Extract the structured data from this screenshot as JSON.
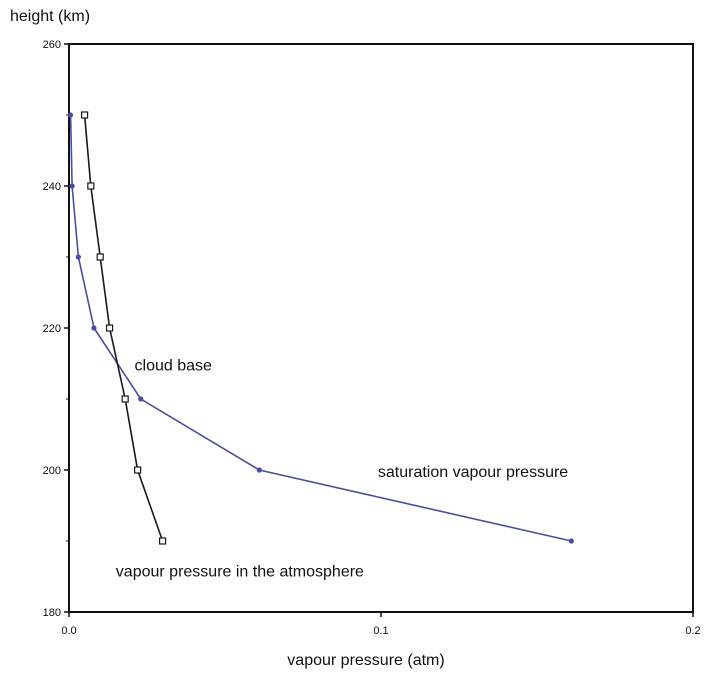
{
  "chart_data": {
    "type": "line",
    "ylabel": "height (km)",
    "xlabel": "vapour pressure (atm)",
    "xlim": [
      0,
      0.2
    ],
    "ylim": [
      180,
      260
    ],
    "x_ticks": [
      "0.0",
      "0.1",
      "0.2"
    ],
    "x_tick_values": [
      0,
      0.1,
      0.2
    ],
    "y_ticks": [
      "180",
      "200",
      "220",
      "240",
      "260"
    ],
    "y_tick_values": [
      180,
      200,
      220,
      240,
      260
    ],
    "y_minor_ticks": [
      190,
      210,
      230,
      250
    ],
    "grid": false,
    "series": [
      {
        "name": "saturation vapour pressure",
        "color": "#4a4ea0",
        "marker": "dot",
        "points": [
          {
            "x": 0.161,
            "y": 190
          },
          {
            "x": 0.061,
            "y": 200
          },
          {
            "x": 0.023,
            "y": 210
          },
          {
            "x": 0.008,
            "y": 220
          },
          {
            "x": 0.003,
            "y": 230
          },
          {
            "x": 0.001,
            "y": 240
          },
          {
            "x": 0.0005,
            "y": 250
          }
        ]
      },
      {
        "name": "vapour pressure in the atmosphere",
        "color": "#1a1a1a",
        "marker": "square",
        "points": [
          {
            "x": 0.03,
            "y": 190
          },
          {
            "x": 0.022,
            "y": 200
          },
          {
            "x": 0.018,
            "y": 210
          },
          {
            "x": 0.013,
            "y": 220
          },
          {
            "x": 0.01,
            "y": 230
          },
          {
            "x": 0.007,
            "y": 240
          },
          {
            "x": 0.005,
            "y": 250
          }
        ]
      }
    ],
    "annotations": [
      {
        "text": "cloud base",
        "x": 0.021,
        "y": 214
      },
      {
        "text": "saturation vapour pressure",
        "x": 0.099,
        "y": 199
      },
      {
        "text": "vapour pressure in the atmosphere",
        "x": 0.015,
        "y": 185
      }
    ]
  }
}
